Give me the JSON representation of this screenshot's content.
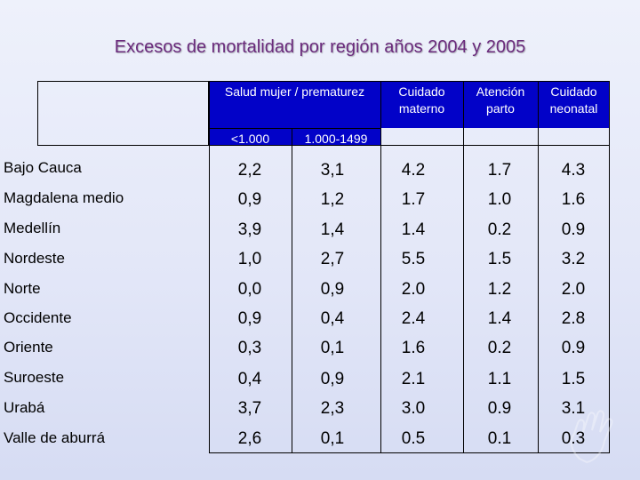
{
  "title": "Excesos de mortalidad por región años 2004 y 2005",
  "headers": {
    "salud": "Salud mujer / prematurez",
    "cuidado_materno": "Cuidado materno",
    "atencion_parto": "Atención parto",
    "cuidado_neonatal": "Cuidado neonatal",
    "sub_1": "<1.000",
    "sub_2": "1.000-1499"
  },
  "rows": [
    {
      "region": "Bajo Cauca",
      "c1": "2,2",
      "c2": "3,1",
      "c3": "4.2",
      "c4": "1.7",
      "c5": "4.3"
    },
    {
      "region": "Magdalena medio",
      "c1": "0,9",
      "c2": "1,2",
      "c3": "1.7",
      "c4": "1.0",
      "c5": "1.6"
    },
    {
      "region": "Medellín",
      "c1": "3,9",
      "c2": "1,4",
      "c3": "1.4",
      "c4": "0.2",
      "c5": "0.9"
    },
    {
      "region": "Nordeste",
      "c1": "1,0",
      "c2": "2,7",
      "c3": "5.5",
      "c4": "1.5",
      "c5": "3.2"
    },
    {
      "region": "Norte",
      "c1": "0,0",
      "c2": "0,9",
      "c3": "2.0",
      "c4": "1.2",
      "c5": "2.0"
    },
    {
      "region": "Occidente",
      "c1": "0,9",
      "c2": "0,4",
      "c3": "2.4",
      "c4": "1.4",
      "c5": "2.8"
    },
    {
      "region": "Oriente",
      "c1": "0,3",
      "c2": "0,1",
      "c3": "1.6",
      "c4": "0.2",
      "c5": "0.9"
    },
    {
      "region": "Suroeste",
      "c1": "0,4",
      "c2": "0,9",
      "c3": "2.1",
      "c4": "1.1",
      "c5": "1.5"
    },
    {
      "region": "Urabá",
      "c1": "3,7",
      "c2": "2,3",
      "c3": "3.0",
      "c4": "0.9",
      "c5": "3.1"
    },
    {
      "region": "Valle de aburrá",
      "c1": "2,6",
      "c2": "0,1",
      "c3": "0.5",
      "c4": "0.1",
      "c5": "0.3"
    }
  ]
}
